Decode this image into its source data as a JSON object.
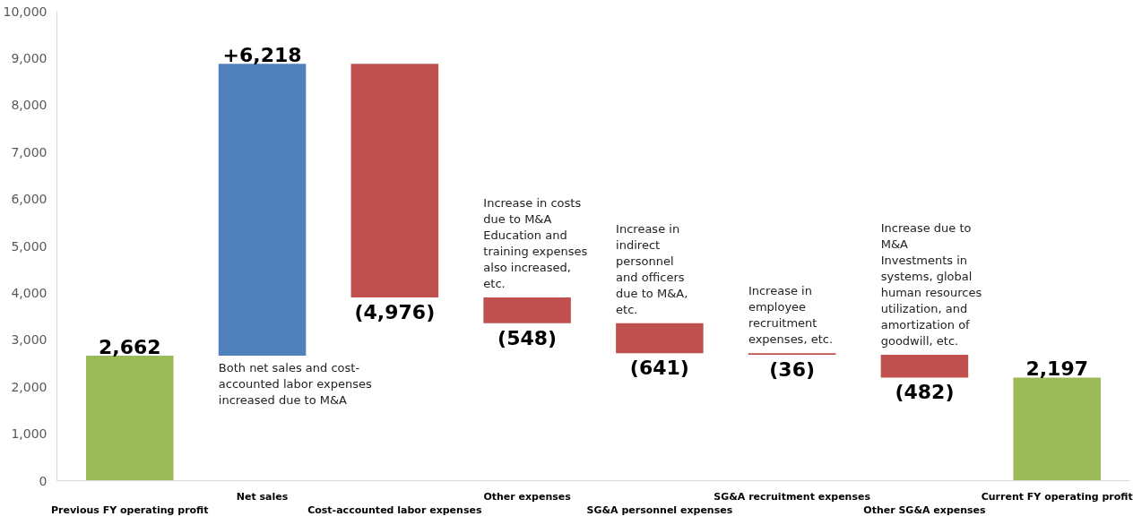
{
  "chart_data": {
    "type": "bar",
    "categories": [
      "Previous FY operating profit",
      "Net sales",
      "Cost-accounted labor expenses",
      "Other expenses",
      "SG&A personnel expenses",
      "SG&A recruitment expenses",
      "Other SG&A expenses",
      "Current FY operating profit"
    ],
    "values": [
      2662,
      6218,
      -4976,
      -548,
      -641,
      -36,
      -482,
      2197
    ],
    "base": [
      0,
      2662,
      8880,
      3904,
      3356,
      2715,
      2679,
      0
    ],
    "colors": [
      "#9bbb59",
      "#4f81bd",
      "#c0504d",
      "#c0504d",
      "#c0504d",
      "#c0504d",
      "#c0504d",
      "#9bbb59"
    ],
    "value_labels": [
      "2,662",
      "+6,218",
      "(4,976)",
      "(548)",
      "(641)",
      "(36)",
      "(482)",
      "2,197"
    ],
    "ylim": [
      0,
      10000
    ],
    "yticks": [
      {
        "value": 0,
        "label": "0"
      },
      {
        "value": 1000,
        "label": "1,000"
      },
      {
        "value": 2000,
        "label": "2,000"
      },
      {
        "value": 3000,
        "label": "3,000"
      },
      {
        "value": 4000,
        "label": "4,000"
      },
      {
        "value": 5000,
        "label": "5,000"
      },
      {
        "value": 6000,
        "label": "6,000"
      },
      {
        "value": 7000,
        "label": "7,000"
      },
      {
        "value": 8000,
        "label": "8,000"
      },
      {
        "value": 9000,
        "label": "9,000"
      },
      {
        "value": 10000,
        "label": "10,000"
      }
    ],
    "grid": false,
    "annotations": [
      "Both net sales and cost-\naccounted labor expenses\nincreased due to M&A",
      "Increase in costs\ndue to M&A\nEducation and\ntraining expenses\nalso increased,\netc.",
      "Increase in\nindirect\npersonnel\nand officers\ndue to M&A,\netc.",
      "Increase in\nemployee\nrecruitment\nexpenses, etc.",
      "Increase due to\nM&A\nInvestments in\nsystems, global\nhuman resources\nutilization, and\namortization of\ngoodwill, etc."
    ]
  }
}
